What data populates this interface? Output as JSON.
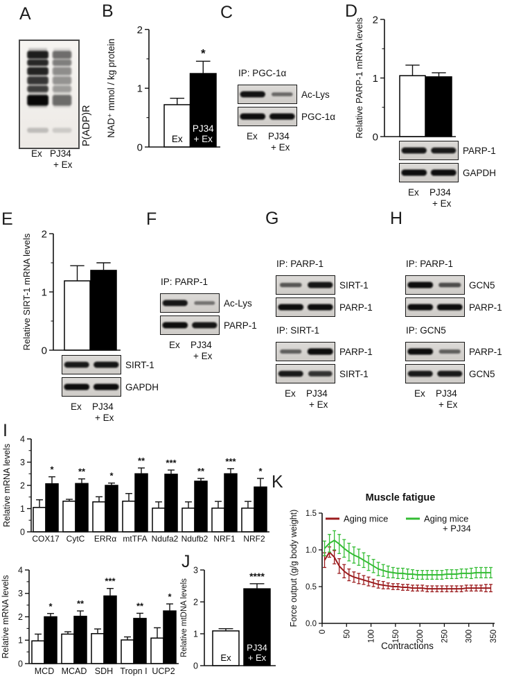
{
  "panels": {
    "A": {
      "letter": "A",
      "side_label": "P(ADP)R",
      "lane_labels": [
        "Ex",
        "PJ34",
        "+ Ex"
      ],
      "bands": [
        {
          "y": 14,
          "h": 11,
          "i": [
            0.85,
            0.5
          ]
        },
        {
          "y": 26,
          "h": 9,
          "i": [
            0.8,
            0.42
          ]
        },
        {
          "y": 37,
          "h": 11,
          "i": [
            0.82,
            0.35
          ]
        },
        {
          "y": 50,
          "h": 11,
          "i": [
            0.72,
            0.32
          ]
        },
        {
          "y": 63,
          "h": 9,
          "i": [
            0.68,
            0.28
          ]
        },
        {
          "y": 76,
          "h": 15,
          "i": [
            0.96,
            0.5
          ]
        },
        {
          "y": 122,
          "h": 7,
          "i": [
            0.2,
            0.14
          ]
        }
      ]
    },
    "B": {
      "letter": "B",
      "chart": {
        "type": "bar",
        "ylabel": "NAD⁺ mmol / kg protein",
        "ylim": [
          0,
          2
        ],
        "yticks": [
          0,
          1,
          2
        ],
        "groups": [
          {
            "label": "",
            "bars": [
              {
                "value": 0.72,
                "err": 0.11,
                "fill": "white",
                "label_lines": [
                  "Ex"
                ]
              },
              {
                "value": 1.25,
                "err": 0.21,
                "fill": "black",
                "label_lines": [
                  "PJ34",
                  "+ Ex"
                ],
                "sig": "*"
              }
            ]
          }
        ]
      }
    },
    "C": {
      "letter": "C",
      "header": "IP: PGC-1α",
      "strips": [
        {
          "label": "Ac-Lys",
          "lanes": [
            0.92,
            0.4
          ]
        },
        {
          "label": "PGC-1α",
          "lanes": [
            0.95,
            0.93
          ]
        }
      ],
      "lane_labels": [
        "Ex",
        "PJ34",
        "+ Ex"
      ]
    },
    "D": {
      "letter": "D",
      "chart": {
        "type": "bar",
        "ylabel": "Relative PARP-1 mRNA levels",
        "ylim": [
          0,
          2
        ],
        "yticks": [
          0,
          1,
          2
        ],
        "groups": [
          {
            "label": "",
            "bars": [
              {
                "value": 1.04,
                "err": 0.18,
                "fill": "white"
              },
              {
                "value": 1.02,
                "err": 0.07,
                "fill": "black"
              }
            ]
          }
        ]
      },
      "blots": {
        "strips": [
          {
            "label": "PARP-1",
            "lanes": [
              0.9,
              0.88
            ]
          },
          {
            "label": "GAPDH",
            "lanes": [
              0.95,
              0.95
            ]
          }
        ],
        "lane_labels": [
          "Ex",
          "PJ34",
          "+ Ex"
        ]
      }
    },
    "E": {
      "letter": "E",
      "chart": {
        "type": "bar",
        "ylabel": "Relative SIRT-1 mRNA levels",
        "ylim": [
          0,
          2
        ],
        "yticks": [
          0,
          1,
          2
        ],
        "groups": [
          {
            "label": "",
            "bars": [
              {
                "value": 1.19,
                "err": 0.26,
                "fill": "white"
              },
              {
                "value": 1.37,
                "err": 0.13,
                "fill": "black"
              }
            ]
          }
        ]
      },
      "blots": {
        "strips": [
          {
            "label": "SIRT-1",
            "lanes": [
              0.88,
              0.9
            ]
          },
          {
            "label": "GAPDH",
            "lanes": [
              0.95,
              0.95
            ]
          }
        ],
        "lane_labels": [
          "Ex",
          "PJ34",
          "+ Ex"
        ]
      }
    },
    "F": {
      "letter": "F",
      "header": "IP: PARP-1",
      "strips": [
        {
          "label": "Ac-Lys",
          "lanes": [
            0.9,
            0.35
          ]
        },
        {
          "label": "PARP-1",
          "lanes": [
            0.95,
            0.9
          ]
        }
      ],
      "lane_labels": [
        "Ex",
        "PJ34",
        "+ Ex"
      ]
    },
    "G": {
      "letter": "G",
      "groups": [
        {
          "header": "IP: PARP-1",
          "strips": [
            {
              "label": "SIRT-1",
              "lanes": [
                0.5,
                0.9
              ]
            },
            {
              "label": "PARP-1",
              "lanes": [
                0.95,
                0.95
              ]
            }
          ]
        },
        {
          "header": "IP: SIRT-1",
          "strips": [
            {
              "label": "PARP-1",
              "lanes": [
                0.45,
                0.97
              ]
            },
            {
              "label": "SIRT-1",
              "lanes": [
                0.88,
                0.75
              ]
            }
          ]
        }
      ],
      "lane_labels": [
        "Ex",
        "PJ34",
        "+ Ex"
      ]
    },
    "H": {
      "letter": "H",
      "groups": [
        {
          "header": "IP: PARP-1",
          "strips": [
            {
              "label": "GCN5",
              "lanes": [
                0.95,
                0.55
              ]
            },
            {
              "label": "PARP-1",
              "lanes": [
                0.95,
                0.95
              ]
            }
          ]
        },
        {
          "header": "IP: GCN5",
          "strips": [
            {
              "label": "PARP-1",
              "lanes": [
                0.95,
                0.45
              ]
            },
            {
              "label": "GCN5",
              "lanes": [
                0.88,
                0.88
              ]
            }
          ]
        }
      ],
      "lane_labels": [
        "Ex",
        "PJ34",
        "+ Ex"
      ]
    },
    "I": {
      "letter": "I",
      "charts": [
        {
          "type": "bar",
          "ylabel": "Relative mRNA levels",
          "ylim": [
            0,
            4
          ],
          "yticks": [
            0,
            1,
            2,
            3,
            4
          ],
          "groups": [
            {
              "label": "COX17",
              "bars": [
                {
                  "value": 1.05,
                  "err": 0.33,
                  "fill": "white"
                },
                {
                  "value": 2.07,
                  "err": 0.3,
                  "fill": "black",
                  "sig": "*"
                }
              ]
            },
            {
              "label": "CytC",
              "bars": [
                {
                  "value": 1.32,
                  "err": 0.08,
                  "fill": "white"
                },
                {
                  "value": 2.08,
                  "err": 0.2,
                  "fill": "black",
                  "sig": "**"
                }
              ]
            },
            {
              "label": "ERRα",
              "bars": [
                {
                  "value": 1.29,
                  "err": 0.22,
                  "fill": "white"
                },
                {
                  "value": 2.0,
                  "err": 0.1,
                  "fill": "black",
                  "sig": "*"
                }
              ]
            },
            {
              "label": "mtTFA",
              "bars": [
                {
                  "value": 1.32,
                  "err": 0.33,
                  "fill": "white"
                },
                {
                  "value": 2.5,
                  "err": 0.25,
                  "fill": "black",
                  "sig": "**"
                }
              ]
            },
            {
              "label": "Ndufa2",
              "bars": [
                {
                  "value": 1.02,
                  "err": 0.27,
                  "fill": "white"
                },
                {
                  "value": 2.48,
                  "err": 0.18,
                  "fill": "black",
                  "sig": "***"
                }
              ]
            },
            {
              "label": "Ndufb2",
              "bars": [
                {
                  "value": 1.02,
                  "err": 0.27,
                  "fill": "white"
                },
                {
                  "value": 2.18,
                  "err": 0.12,
                  "fill": "black",
                  "sig": "**"
                }
              ]
            },
            {
              "label": "NRF1",
              "bars": [
                {
                  "value": 1.02,
                  "err": 0.29,
                  "fill": "white"
                },
                {
                  "value": 2.5,
                  "err": 0.22,
                  "fill": "black",
                  "sig": "***"
                }
              ]
            },
            {
              "label": "NRF2",
              "bars": [
                {
                  "value": 1.02,
                  "err": 0.29,
                  "fill": "white"
                },
                {
                  "value": 1.93,
                  "err": 0.37,
                  "fill": "black",
                  "sig": "*"
                }
              ]
            }
          ]
        },
        {
          "type": "bar",
          "ylabel": "Relative mRNA levels",
          "ylim": [
            0,
            4
          ],
          "yticks": [
            0,
            1,
            2,
            3,
            4
          ],
          "groups": [
            {
              "label": "MCD",
              "bars": [
                {
                  "value": 0.97,
                  "err": 0.29,
                  "fill": "white"
                },
                {
                  "value": 2.0,
                  "err": 0.14,
                  "fill": "black",
                  "sig": "*"
                }
              ]
            },
            {
              "label": "MCAD",
              "bars": [
                {
                  "value": 1.26,
                  "err": 0.1,
                  "fill": "white"
                },
                {
                  "value": 2.02,
                  "err": 0.23,
                  "fill": "black",
                  "sig": "**"
                }
              ]
            },
            {
              "label": "SDH",
              "bars": [
                {
                  "value": 1.28,
                  "err": 0.2,
                  "fill": "white"
                },
                {
                  "value": 2.89,
                  "err": 0.32,
                  "fill": "black",
                  "sig": "***"
                }
              ]
            },
            {
              "label": "Tropn I",
              "bars": [
                {
                  "value": 1.01,
                  "err": 0.13,
                  "fill": "white"
                },
                {
                  "value": 1.93,
                  "err": 0.22,
                  "fill": "black",
                  "sig": "**"
                }
              ]
            },
            {
              "label": "UCP2",
              "bars": [
                {
                  "value": 1.09,
                  "err": 0.44,
                  "fill": "white"
                },
                {
                  "value": 2.25,
                  "err": 0.3,
                  "fill": "black",
                  "sig": "*"
                }
              ]
            }
          ]
        }
      ]
    },
    "J": {
      "letter": "J",
      "chart": {
        "type": "bar",
        "ylabel": "Relative mtDNA levels",
        "ylim": [
          0,
          3
        ],
        "yticks": [
          0,
          1,
          2,
          3
        ],
        "groups": [
          {
            "label": "",
            "bars": [
              {
                "value": 1.09,
                "err": 0.07,
                "fill": "white",
                "label_lines": [
                  "Ex"
                ]
              },
              {
                "value": 2.41,
                "err": 0.16,
                "fill": "black",
                "label_lines": [
                  "PJ34",
                  "+ Ex"
                ],
                "sig": "****"
              }
            ]
          }
        ]
      }
    },
    "K": {
      "letter": "K",
      "chart": {
        "type": "line",
        "title": "Muscle fatigue",
        "xlabel": "Contractions",
        "ylabel": "Force output (g/g body weight)",
        "xlim": [
          0,
          350
        ],
        "ylim": [
          0,
          1.5
        ],
        "xticks": [
          0,
          50,
          100,
          150,
          200,
          250,
          300,
          350
        ],
        "yticks": [
          "0.0",
          "0.5",
          "1.0",
          "1.5"
        ],
        "legend_position": "top-inside",
        "series": [
          {
            "name_lines": [
              "Aging mice"
            ],
            "color": "#9B1B1D",
            "x": [
              5,
              15,
              25,
              35,
              45,
              55,
              65,
              75,
              85,
              95,
              105,
              115,
              125,
              135,
              145,
              155,
              165,
              175,
              185,
              195,
              205,
              215,
              225,
              235,
              245,
              255,
              265,
              275,
              285,
              295,
              305,
              315,
              325,
              335,
              345
            ],
            "y": [
              0.86,
              0.97,
              0.9,
              0.78,
              0.71,
              0.66,
              0.63,
              0.61,
              0.59,
              0.57,
              0.55,
              0.53,
              0.52,
              0.51,
              0.5,
              0.5,
              0.49,
              0.49,
              0.48,
              0.48,
              0.48,
              0.47,
              0.47,
              0.47,
              0.47,
              0.47,
              0.47,
              0.47,
              0.47,
              0.48,
              0.48,
              0.48,
              0.48,
              0.48,
              0.48
            ],
            "err": [
              0.1,
              0.07,
              0.09,
              0.1,
              0.09,
              0.08,
              0.07,
              0.07,
              0.06,
              0.06,
              0.05,
              0.05,
              0.05,
              0.04,
              0.04,
              0.04,
              0.04,
              0.04,
              0.04,
              0.04,
              0.04,
              0.04,
              0.04,
              0.04,
              0.04,
              0.04,
              0.04,
              0.04,
              0.04,
              0.04,
              0.04,
              0.04,
              0.04,
              0.05,
              0.05
            ]
          },
          {
            "name_lines": [
              "Aging mice",
              "+ PJ34"
            ],
            "color": "#33BC33",
            "x": [
              5,
              15,
              25,
              35,
              45,
              55,
              65,
              75,
              85,
              95,
              105,
              115,
              125,
              135,
              145,
              155,
              165,
              175,
              185,
              195,
              205,
              215,
              225,
              235,
              245,
              255,
              265,
              275,
              285,
              295,
              305,
              315,
              325,
              335,
              345
            ],
            "y": [
              1.02,
              1.09,
              1.13,
              1.08,
              1.02,
              0.97,
              0.93,
              0.9,
              0.86,
              0.82,
              0.78,
              0.74,
              0.72,
              0.7,
              0.69,
              0.68,
              0.68,
              0.67,
              0.67,
              0.66,
              0.66,
              0.66,
              0.66,
              0.66,
              0.66,
              0.67,
              0.67,
              0.67,
              0.68,
              0.68,
              0.68,
              0.69,
              0.69,
              0.69,
              0.69
            ],
            "err": [
              0.1,
              0.12,
              0.13,
              0.13,
              0.12,
              0.12,
              0.11,
              0.11,
              0.1,
              0.1,
              0.09,
              0.09,
              0.08,
              0.08,
              0.07,
              0.07,
              0.07,
              0.07,
              0.06,
              0.06,
              0.06,
              0.06,
              0.06,
              0.06,
              0.06,
              0.06,
              0.06,
              0.06,
              0.06,
              0.06,
              0.07,
              0.07,
              0.07,
              0.07,
              0.07
            ]
          }
        ]
      }
    }
  }
}
